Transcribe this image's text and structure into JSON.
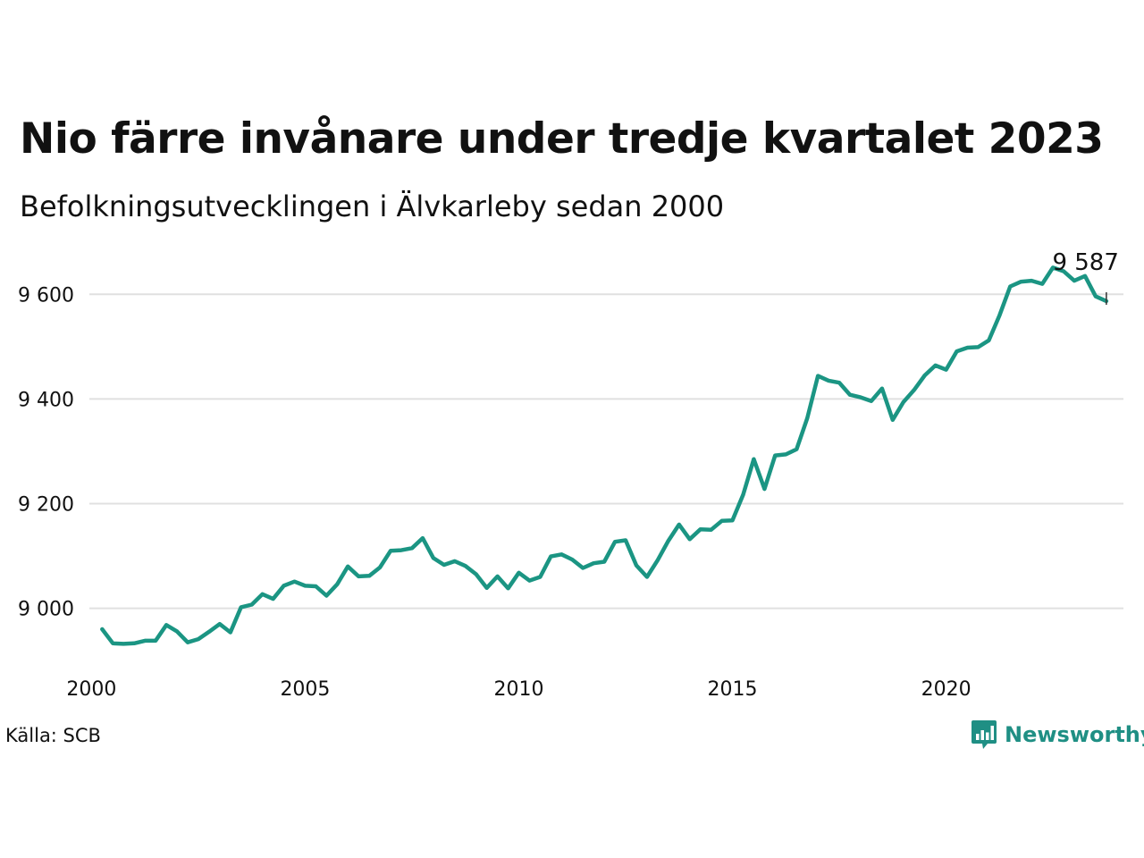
{
  "title": "Nio färre invånare under tredje kvartalet 2023",
  "subtitle": "Befolkningsutvecklingen i Älvkarleby sedan 2000",
  "source": "Källa: SCB",
  "brand": {
    "name": "Newsworthy",
    "color": "#1f8f84"
  },
  "colors": {
    "line": "#1b9583",
    "grid": "#e0e0e0"
  },
  "chart_data": {
    "type": "line",
    "title": "Nio färre invånare under tredje kvartalet 2023",
    "subtitle": "Befolkningsutvecklingen i Älvkarleby sedan 2000",
    "xlabel": "",
    "ylabel": "",
    "xlim": [
      1999.95,
      2024.15
    ],
    "ylim": [
      8890,
      9650
    ],
    "x_ticks": [
      2000,
      2005,
      2010,
      2015,
      2020
    ],
    "x_tick_labels": [
      "2000",
      "2005",
      "2010",
      "2015",
      "2020"
    ],
    "y_ticks": [
      9000,
      9200,
      9400,
      9600
    ],
    "y_tick_labels": [
      "9 000",
      "9 200",
      "9 400",
      "9 600"
    ],
    "grid": "horizontal",
    "end_label": "9 587",
    "series": [
      {
        "x": [
          2000.25,
          2000.5,
          2000.75,
          2001,
          2001.25,
          2001.5,
          2001.75,
          2002,
          2002.25,
          2002.5,
          2002.75,
          2003,
          2003.25,
          2003.5,
          2003.75,
          2004,
          2004.25,
          2004.5,
          2004.75,
          2005,
          2005.25,
          2005.5,
          2005.75,
          2006,
          2006.25,
          2006.5,
          2006.75,
          2007,
          2007.25,
          2007.5,
          2007.75,
          2008,
          2008.25,
          2008.5,
          2008.75,
          2009,
          2009.25,
          2009.5,
          2009.75,
          2010,
          2010.25,
          2010.5,
          2010.75,
          2011,
          2011.25,
          2011.5,
          2011.75,
          2012,
          2012.25,
          2012.5,
          2012.75,
          2013,
          2013.25,
          2013.5,
          2013.75,
          2014,
          2014.25,
          2014.5,
          2014.75,
          2015,
          2015.25,
          2015.5,
          2015.75,
          2016,
          2016.25,
          2016.5,
          2016.75,
          2017,
          2017.25,
          2017.5,
          2017.75,
          2018,
          2018.25,
          2018.5,
          2018.75,
          2019,
          2019.25,
          2019.5,
          2019.75,
          2020,
          2020.25,
          2020.5,
          2020.75,
          2021,
          2021.25,
          2021.5,
          2021.75,
          2022,
          2022.25,
          2022.5,
          2022.75,
          2023,
          2023.25,
          2023.5,
          2023.75
        ],
        "values": [
          8960,
          8933,
          8932,
          8933,
          8938,
          8938,
          8968,
          8956,
          8935,
          8941,
          8955,
          8970,
          8954,
          9002,
          9007,
          9027,
          9018,
          9043,
          9051,
          9043,
          9042,
          9024,
          9046,
          9080,
          9061,
          9062,
          9078,
          9110,
          9111,
          9115,
          9134,
          9096,
          9083,
          9090,
          9081,
          9065,
          9039,
          9061,
          9038,
          9068,
          9053,
          9060,
          9099,
          9103,
          9093,
          9077,
          9086,
          9089,
          9127,
          9130,
          9082,
          9060,
          9092,
          9129,
          9160,
          9132,
          9151,
          9150,
          9167,
          9168,
          9217,
          9285,
          9228,
          9292,
          9294,
          9304,
          9363,
          9444,
          9435,
          9431,
          9408,
          9403,
          9396,
          9420,
          9360,
          9394,
          9417,
          9445,
          9464,
          9456,
          9491,
          9498,
          9499,
          9512,
          9560,
          9615,
          9624,
          9626,
          9620,
          9651,
          9644,
          9626,
          9635,
          9596,
          9587
        ]
      }
    ]
  }
}
